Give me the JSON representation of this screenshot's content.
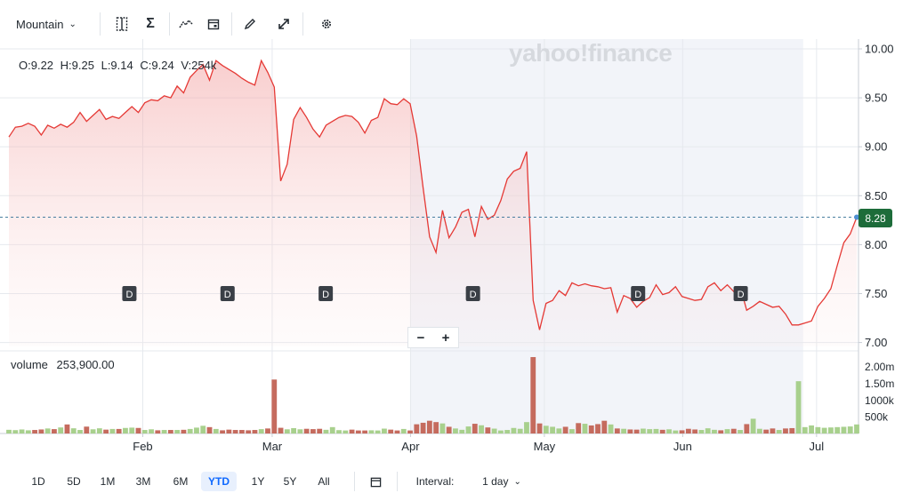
{
  "toolbar": {
    "chart_type_label": "Mountain",
    "icons": [
      "compare-icon",
      "indicators-icon",
      "line-tools-icon",
      "events-calendar-icon",
      "draw-pencil-icon",
      "fullscreen-icon",
      "settings-icon"
    ]
  },
  "watermark": "yahoo!finance",
  "ohlc": {
    "open": "O:9.22",
    "high": "H:9.25",
    "low": "L:9.14",
    "close": "C:9.24",
    "volume": "V:254k"
  },
  "volume_label": "volume",
  "volume_value": "253,900.00",
  "current_price": "8.28",
  "zoom": {
    "minus": "−",
    "plus": "+"
  },
  "dividend_marker": "D",
  "bottom_bar": {
    "ranges": [
      "1D",
      "5D",
      "1M",
      "3M",
      "6M",
      "YTD",
      "1Y",
      "5Y",
      "All"
    ],
    "active_range": "YTD",
    "interval_label": "Interval:",
    "interval_value": "1 day"
  },
  "colors": {
    "line": "#e53935",
    "up_volume": "#a8d08d",
    "down_volume": "#c56b5e",
    "price_tag": "#1d6c3a"
  },
  "chart_data": {
    "type": "area",
    "xlabel": "",
    "ylabel": "",
    "x_ticks": [
      "Feb",
      "Mar",
      "Apr",
      "May",
      "Jun",
      "Jul"
    ],
    "y_ticks": [
      "10.00",
      "9.50",
      "9.00",
      "8.50",
      "8.00",
      "7.50",
      "7.00"
    ],
    "ylim": [
      6.96,
      10.1
    ],
    "volume_ticks": [
      "2.00m",
      "1.50m",
      "1000k",
      "500k"
    ],
    "volume_ylim": [
      0,
      2200000
    ],
    "grid": true,
    "dividend_dates": [
      "2024-01-29",
      "2024-02-20",
      "2024-03-13",
      "2024-04-15",
      "2024-05-22",
      "2024-06-14"
    ],
    "shaded_range": [
      "2024-04-01",
      "2024-06-28"
    ],
    "series": [
      {
        "values": [
          9.1,
          9.2,
          9.21,
          9.24,
          9.21,
          9.12,
          9.22,
          9.19,
          9.23,
          9.2,
          9.25,
          9.35,
          9.26,
          9.32,
          9.38,
          9.28,
          9.31,
          9.29,
          9.35,
          9.41,
          9.35,
          9.45,
          9.48,
          9.47,
          9.52,
          9.5,
          9.62,
          9.55,
          9.71,
          9.78,
          9.84,
          9.68,
          9.88,
          9.83,
          9.79,
          9.75,
          9.7,
          9.66,
          9.63,
          9.88,
          9.76,
          9.61,
          8.65,
          8.82,
          9.28,
          9.4,
          9.3,
          9.18,
          9.1,
          9.22,
          9.26,
          9.3,
          9.32,
          9.31,
          9.25,
          9.14,
          9.27,
          9.3,
          9.49,
          9.44,
          9.43,
          9.49,
          9.44,
          9.11,
          8.58,
          8.08,
          7.92,
          8.35,
          8.07,
          8.18,
          8.33,
          8.36,
          8.08,
          8.39,
          8.26,
          8.3,
          8.45,
          8.67,
          8.75,
          8.78,
          8.95,
          7.43,
          7.13,
          7.4,
          7.43,
          7.53,
          7.48,
          7.61,
          7.58,
          7.6,
          7.58,
          7.57,
          7.55,
          7.56,
          7.31,
          7.48,
          7.45,
          7.36,
          7.42,
          7.46,
          7.59,
          7.49,
          7.51,
          7.57,
          7.47,
          7.45,
          7.43,
          7.44,
          7.57,
          7.61,
          7.53,
          7.59,
          7.52,
          7.57,
          7.33,
          7.37,
          7.42,
          7.39,
          7.36,
          7.37,
          7.29,
          7.18,
          7.18,
          7.2,
          7.22,
          7.37,
          7.45,
          7.55,
          7.79,
          8.02,
          8.11,
          8.28
        ]
      }
    ],
    "volume_values": [
      110000,
      100000,
      120000,
      95000,
      105000,
      120000,
      150000,
      130000,
      180000,
      270000,
      155000,
      105000,
      205000,
      125000,
      155000,
      115000,
      135000,
      135000,
      165000,
      175000,
      165000,
      105000,
      125000,
      95000,
      105000,
      105000,
      105000,
      110000,
      135000,
      175000,
      230000,
      190000,
      135000,
      95000,
      115000,
      105000,
      105000,
      95000,
      105000,
      130000,
      150000,
      1610000,
      170000,
      125000,
      160000,
      125000,
      140000,
      130000,
      140000,
      110000,
      190000,
      100000,
      90000,
      115000,
      90000,
      90000,
      95000,
      90000,
      145000,
      115000,
      90000,
      135000,
      90000,
      275000,
      320000,
      380000,
      340000,
      300000,
      200000,
      150000,
      110000,
      210000,
      290000,
      245000,
      180000,
      145000,
      90000,
      105000,
      165000,
      140000,
      340000,
      2280000,
      300000,
      230000,
      200000,
      150000,
      200000,
      130000,
      310000,
      290000,
      240000,
      280000,
      380000,
      270000,
      150000,
      140000,
      120000,
      115000,
      145000,
      130000,
      135000,
      110000,
      125000,
      90000,
      95000,
      140000,
      120000,
      105000,
      155000,
      110000,
      95000,
      130000,
      140000,
      105000,
      280000,
      440000,
      140000,
      115000,
      150000,
      105000,
      150000,
      160000,
      1560000,
      190000,
      240000,
      190000,
      170000,
      180000,
      190000,
      200000,
      210000,
      270000
    ]
  }
}
